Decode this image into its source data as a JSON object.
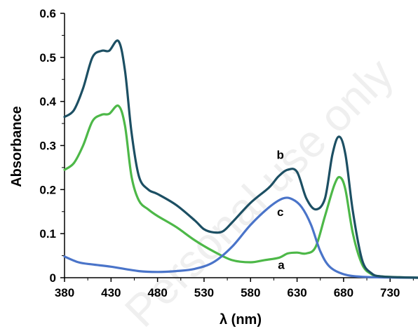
{
  "chart_data": {
    "type": "line",
    "xlabel": "λ (nm)",
    "ylabel": "Absorbance",
    "xlim": [
      380,
      760
    ],
    "ylim": [
      0,
      0.6
    ],
    "x_ticks": [
      380,
      430,
      480,
      530,
      580,
      630,
      680,
      730
    ],
    "y_ticks": [
      0,
      0.1,
      0.2,
      0.3,
      0.4,
      0.5,
      0.6
    ],
    "y_tick_labels": [
      "0",
      "0.1",
      "0.2",
      "0.3",
      "0.4",
      "0.5",
      "0.6"
    ],
    "grid": false,
    "watermark": "Personal use only",
    "series": [
      {
        "name": "a",
        "color": "#4db848",
        "points": [
          [
            380,
            0.245
          ],
          [
            390,
            0.26
          ],
          [
            400,
            0.3
          ],
          [
            410,
            0.355
          ],
          [
            420,
            0.37
          ],
          [
            428,
            0.372
          ],
          [
            438,
            0.39
          ],
          [
            445,
            0.345
          ],
          [
            452,
            0.23
          ],
          [
            460,
            0.175
          ],
          [
            470,
            0.155
          ],
          [
            480,
            0.14
          ],
          [
            500,
            0.115
          ],
          [
            520,
            0.085
          ],
          [
            540,
            0.06
          ],
          [
            560,
            0.04
          ],
          [
            580,
            0.035
          ],
          [
            595,
            0.04
          ],
          [
            610,
            0.045
          ],
          [
            620,
            0.055
          ],
          [
            630,
            0.057
          ],
          [
            640,
            0.055
          ],
          [
            650,
            0.07
          ],
          [
            660,
            0.14
          ],
          [
            670,
            0.21
          ],
          [
            676,
            0.228
          ],
          [
            682,
            0.2
          ],
          [
            690,
            0.1
          ],
          [
            700,
            0.03
          ],
          [
            710,
            0.008
          ],
          [
            720,
            0.003
          ],
          [
            740,
            0.001
          ],
          [
            760,
            0
          ]
        ],
        "label_at": [
          613,
          0.02
        ]
      },
      {
        "name": "b",
        "color": "#1c4f63",
        "points": [
          [
            380,
            0.365
          ],
          [
            390,
            0.38
          ],
          [
            400,
            0.43
          ],
          [
            410,
            0.5
          ],
          [
            420,
            0.515
          ],
          [
            428,
            0.515
          ],
          [
            438,
            0.537
          ],
          [
            445,
            0.47
          ],
          [
            452,
            0.33
          ],
          [
            460,
            0.23
          ],
          [
            470,
            0.2
          ],
          [
            480,
            0.19
          ],
          [
            500,
            0.165
          ],
          [
            520,
            0.13
          ],
          [
            530,
            0.11
          ],
          [
            540,
            0.103
          ],
          [
            550,
            0.105
          ],
          [
            560,
            0.125
          ],
          [
            580,
            0.17
          ],
          [
            600,
            0.205
          ],
          [
            610,
            0.23
          ],
          [
            620,
            0.245
          ],
          [
            630,
            0.24
          ],
          [
            640,
            0.18
          ],
          [
            650,
            0.155
          ],
          [
            660,
            0.18
          ],
          [
            668,
            0.28
          ],
          [
            675,
            0.32
          ],
          [
            682,
            0.28
          ],
          [
            690,
            0.15
          ],
          [
            700,
            0.04
          ],
          [
            710,
            0.01
          ],
          [
            720,
            0.003
          ],
          [
            740,
            0.001
          ],
          [
            760,
            0
          ]
        ],
        "label_at": [
          612,
          0.27
        ]
      },
      {
        "name": "c",
        "color": "#4a74c9",
        "points": [
          [
            380,
            0.048
          ],
          [
            395,
            0.035
          ],
          [
            410,
            0.03
          ],
          [
            430,
            0.025
          ],
          [
            460,
            0.015
          ],
          [
            480,
            0.013
          ],
          [
            500,
            0.015
          ],
          [
            520,
            0.02
          ],
          [
            540,
            0.035
          ],
          [
            560,
            0.07
          ],
          [
            580,
            0.12
          ],
          [
            600,
            0.16
          ],
          [
            615,
            0.18
          ],
          [
            625,
            0.178
          ],
          [
            635,
            0.16
          ],
          [
            645,
            0.12
          ],
          [
            655,
            0.06
          ],
          [
            665,
            0.025
          ],
          [
            680,
            0.008
          ],
          [
            700,
            0.002
          ],
          [
            730,
            0.0005
          ],
          [
            760,
            0
          ]
        ],
        "label_at": [
          612,
          0.14
        ]
      }
    ]
  }
}
